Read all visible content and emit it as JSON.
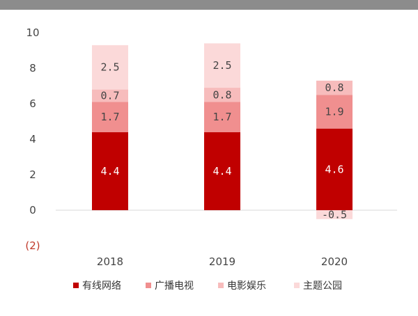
{
  "chart_data": {
    "type": "bar",
    "stacked": true,
    "categories": [
      "2018",
      "2019",
      "2020"
    ],
    "series": [
      {
        "name": "有线网络",
        "color": "#c00000",
        "values": [
          4.4,
          4.4,
          4.6
        ]
      },
      {
        "name": "广播电视",
        "color": "#f08f8f",
        "values": [
          1.7,
          1.7,
          1.9
        ]
      },
      {
        "name": "电影娱乐",
        "color": "#f7bcbc",
        "values": [
          0.7,
          0.8,
          0.8
        ]
      },
      {
        "name": "主题公园",
        "color": "#fbd9d9",
        "values": [
          2.5,
          2.5,
          -0.5
        ]
      }
    ],
    "data_labels": [
      [
        "4.4",
        "4.4",
        "4.6"
      ],
      [
        "1.7",
        "1.7",
        "1.9"
      ],
      [
        "0.7",
        "0.8",
        "0.8"
      ],
      [
        "2.5",
        "2.5",
        "-0.5"
      ]
    ],
    "y_ticks": [
      "10",
      "8",
      "6",
      "4",
      "2",
      "0",
      "(2)"
    ],
    "y_tick_values": [
      10,
      8,
      6,
      4,
      2,
      0,
      -2
    ],
    "ylim": [
      -2,
      10
    ],
    "grid": false,
    "legend_position": "bottom"
  }
}
